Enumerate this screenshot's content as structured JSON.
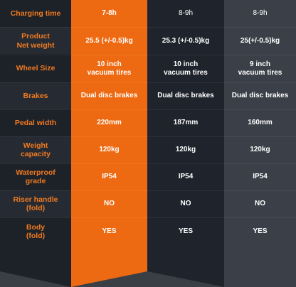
{
  "colors": {
    "accent": "#ee6a12",
    "label_text": "#f07a20",
    "value_text": "#ffffff",
    "col2_bg": "#1f242c",
    "col3_bg": "#3b4048"
  },
  "rows": [
    {
      "label": "Charging time",
      "values": [
        "7-8h",
        "8-9h",
        "8-9h"
      ]
    },
    {
      "label": "Product\nNet weight",
      "values": [
        "25.5 (+/-0.5)kg",
        "25.3 (+/-0.5)kg",
        "25(+/-0.5)kg"
      ]
    },
    {
      "label": "Wheel Size",
      "values": [
        "10 inch\nvacuum tires",
        "10 inch\nvacuum tires",
        "9 inch\nvacuum tires"
      ]
    },
    {
      "label": "Brakes",
      "values": [
        "Dual disc brakes",
        "Dual disc brakes",
        "Dual disc brakes"
      ]
    },
    {
      "label": "Pedal width",
      "values": [
        "220mm",
        "187mm",
        "160mm"
      ]
    },
    {
      "label": "Weight\ncapacity",
      "values": [
        "120kg",
        "120kg",
        "120kg"
      ]
    },
    {
      "label": "Waterproof\ngrade",
      "values": [
        "IP54",
        "IP54",
        "IP54"
      ]
    },
    {
      "label": "Riser handle\n(fold)",
      "values": [
        "NO",
        "NO",
        "NO"
      ]
    },
    {
      "label": "Body\n(fold)",
      "values": [
        "YES",
        "YES",
        "YES"
      ]
    }
  ]
}
